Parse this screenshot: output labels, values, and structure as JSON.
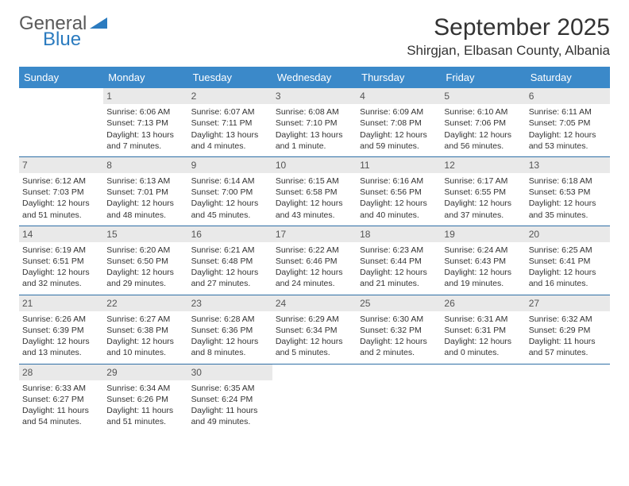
{
  "logo": {
    "line1": "General",
    "line2": "Blue",
    "shape_color": "#2b7bbf",
    "line1_color": "#5a5a5a"
  },
  "header": {
    "month_title": "September 2025",
    "location": "Shirgjan, Elbasan County, Albania"
  },
  "colors": {
    "header_bg": "#3b89c9",
    "row_border": "#2f6fa6",
    "daynum_bg": "#e9e9e9",
    "text": "#333333"
  },
  "weekdays": [
    "Sunday",
    "Monday",
    "Tuesday",
    "Wednesday",
    "Thursday",
    "Friday",
    "Saturday"
  ],
  "weeks": [
    [
      null,
      {
        "n": "1",
        "sr": "6:06 AM",
        "ss": "7:13 PM",
        "dl": "13 hours and 7 minutes."
      },
      {
        "n": "2",
        "sr": "6:07 AM",
        "ss": "7:11 PM",
        "dl": "13 hours and 4 minutes."
      },
      {
        "n": "3",
        "sr": "6:08 AM",
        "ss": "7:10 PM",
        "dl": "13 hours and 1 minute."
      },
      {
        "n": "4",
        "sr": "6:09 AM",
        "ss": "7:08 PM",
        "dl": "12 hours and 59 minutes."
      },
      {
        "n": "5",
        "sr": "6:10 AM",
        "ss": "7:06 PM",
        "dl": "12 hours and 56 minutes."
      },
      {
        "n": "6",
        "sr": "6:11 AM",
        "ss": "7:05 PM",
        "dl": "12 hours and 53 minutes."
      }
    ],
    [
      {
        "n": "7",
        "sr": "6:12 AM",
        "ss": "7:03 PM",
        "dl": "12 hours and 51 minutes."
      },
      {
        "n": "8",
        "sr": "6:13 AM",
        "ss": "7:01 PM",
        "dl": "12 hours and 48 minutes."
      },
      {
        "n": "9",
        "sr": "6:14 AM",
        "ss": "7:00 PM",
        "dl": "12 hours and 45 minutes."
      },
      {
        "n": "10",
        "sr": "6:15 AM",
        "ss": "6:58 PM",
        "dl": "12 hours and 43 minutes."
      },
      {
        "n": "11",
        "sr": "6:16 AM",
        "ss": "6:56 PM",
        "dl": "12 hours and 40 minutes."
      },
      {
        "n": "12",
        "sr": "6:17 AM",
        "ss": "6:55 PM",
        "dl": "12 hours and 37 minutes."
      },
      {
        "n": "13",
        "sr": "6:18 AM",
        "ss": "6:53 PM",
        "dl": "12 hours and 35 minutes."
      }
    ],
    [
      {
        "n": "14",
        "sr": "6:19 AM",
        "ss": "6:51 PM",
        "dl": "12 hours and 32 minutes."
      },
      {
        "n": "15",
        "sr": "6:20 AM",
        "ss": "6:50 PM",
        "dl": "12 hours and 29 minutes."
      },
      {
        "n": "16",
        "sr": "6:21 AM",
        "ss": "6:48 PM",
        "dl": "12 hours and 27 minutes."
      },
      {
        "n": "17",
        "sr": "6:22 AM",
        "ss": "6:46 PM",
        "dl": "12 hours and 24 minutes."
      },
      {
        "n": "18",
        "sr": "6:23 AM",
        "ss": "6:44 PM",
        "dl": "12 hours and 21 minutes."
      },
      {
        "n": "19",
        "sr": "6:24 AM",
        "ss": "6:43 PM",
        "dl": "12 hours and 19 minutes."
      },
      {
        "n": "20",
        "sr": "6:25 AM",
        "ss": "6:41 PM",
        "dl": "12 hours and 16 minutes."
      }
    ],
    [
      {
        "n": "21",
        "sr": "6:26 AM",
        "ss": "6:39 PM",
        "dl": "12 hours and 13 minutes."
      },
      {
        "n": "22",
        "sr": "6:27 AM",
        "ss": "6:38 PM",
        "dl": "12 hours and 10 minutes."
      },
      {
        "n": "23",
        "sr": "6:28 AM",
        "ss": "6:36 PM",
        "dl": "12 hours and 8 minutes."
      },
      {
        "n": "24",
        "sr": "6:29 AM",
        "ss": "6:34 PM",
        "dl": "12 hours and 5 minutes."
      },
      {
        "n": "25",
        "sr": "6:30 AM",
        "ss": "6:32 PM",
        "dl": "12 hours and 2 minutes."
      },
      {
        "n": "26",
        "sr": "6:31 AM",
        "ss": "6:31 PM",
        "dl": "12 hours and 0 minutes."
      },
      {
        "n": "27",
        "sr": "6:32 AM",
        "ss": "6:29 PM",
        "dl": "11 hours and 57 minutes."
      }
    ],
    [
      {
        "n": "28",
        "sr": "6:33 AM",
        "ss": "6:27 PM",
        "dl": "11 hours and 54 minutes."
      },
      {
        "n": "29",
        "sr": "6:34 AM",
        "ss": "6:26 PM",
        "dl": "11 hours and 51 minutes."
      },
      {
        "n": "30",
        "sr": "6:35 AM",
        "ss": "6:24 PM",
        "dl": "11 hours and 49 minutes."
      },
      null,
      null,
      null,
      null
    ]
  ],
  "labels": {
    "sunrise": "Sunrise:",
    "sunset": "Sunset:",
    "daylight": "Daylight:"
  }
}
